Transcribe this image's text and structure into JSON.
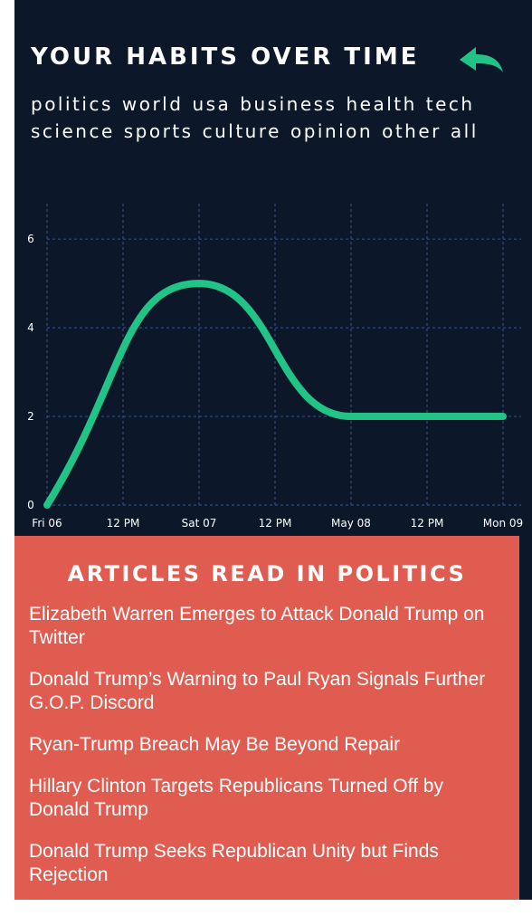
{
  "header": {
    "title": "YOUR HABITS OVER TIME",
    "back_icon": "back-arrow-icon"
  },
  "categories": [
    "politics",
    "world",
    "usa",
    "business",
    "health",
    "tech",
    "science",
    "sports",
    "culture",
    "opinion",
    "other",
    "all"
  ],
  "colors": {
    "background": "#0d172a",
    "accent": "#21c486",
    "grid": "#2f4b7c",
    "panel": "#e05c50",
    "text": "#ffffff"
  },
  "chart_data": {
    "type": "line",
    "x": [
      "Fri 06",
      "Sat 07",
      "May 08",
      "Mon 09"
    ],
    "series": [
      {
        "values": [
          0,
          5,
          2,
          2
        ]
      }
    ],
    "x_ticks": [
      "Fri 06",
      "12 PM",
      "Sat 07",
      "12 PM",
      "May 08",
      "12 PM",
      "Mon 09"
    ],
    "y_ticks": [
      "0",
      "2",
      "4",
      "6"
    ],
    "ylim": [
      0,
      6.8
    ],
    "grid": true,
    "curve": "smooth"
  },
  "articles": {
    "title": "ARTICLES READ IN POLITICS",
    "items": [
      "Elizabeth Warren Emerges to Attack Donald Trump on Twitter",
      "Donald Trump’s Warning to Paul Ryan Signals Further G.O.P. Discord",
      "Ryan-Trump Breach May Be Beyond Repair",
      "Hillary Clinton Targets Republicans Turned Off by Donald Trump",
      "Donald Trump Seeks Republican Unity but Finds Rejection"
    ]
  }
}
